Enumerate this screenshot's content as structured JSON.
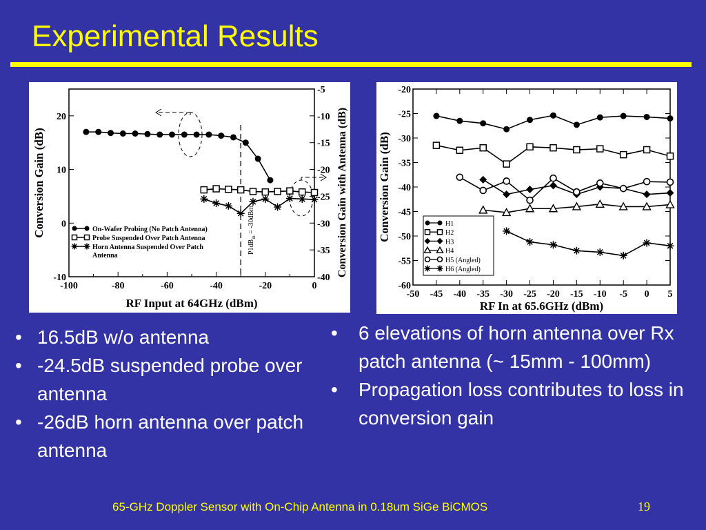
{
  "slide": {
    "title": "Experimental Results",
    "footer": "65-GHz Doppler Sensor with On-Chip Antenna in 0.18um SiGe BiCMOS",
    "page_number": "19",
    "bullets_left": [
      "16.5dB w/o antenna",
      "-24.5dB suspended probe over antenna",
      "-26dB horn antenna over patch antenna"
    ],
    "bullets_right": [
      "6 elevations of horn antenna over Rx patch antenna (~ 15mm -  100mm)",
      "Propagation loss contributes to loss in conversion gain"
    ],
    "bullet_char": "•"
  },
  "colors": {
    "background": "#3333a6",
    "accent": "#ffff00",
    "text": "#ffffff"
  },
  "chart_data": [
    {
      "type": "line",
      "xlabel": "RF Input at 64GHz (dBm)",
      "ylabel": "Conversion Gain (dB)",
      "y2label": "Conversion Gain with Antenna (dB)",
      "xlim": [
        -100,
        0
      ],
      "ylim": [
        -10,
        25
      ],
      "y2lim": [
        -40,
        -5
      ],
      "xticks": [
        "-100",
        "-80",
        "-60",
        "-40",
        "-20",
        "0"
      ],
      "yticks": [
        "-10",
        "0",
        "10",
        "20"
      ],
      "y2ticks": [
        "-5",
        "-10",
        "-15",
        "-20",
        "-25",
        "-30",
        "-35",
        "-40"
      ],
      "annotation": "P1dB",
      "annotation_sub": "in",
      "annotation_rest": " = -30dBm",
      "series": [
        {
          "name": "On-Wafer Probing (No Patch Antenna)",
          "marker": "circle-filled",
          "axis": "left",
          "x": [
            -93,
            -88,
            -83,
            -78,
            -73,
            -68,
            -63,
            -58,
            -53,
            -48,
            -43,
            -38,
            -33,
            -28,
            -23,
            -18
          ],
          "values": [
            17,
            17,
            16.8,
            16.7,
            16.7,
            16.6,
            16.5,
            16.5,
            16.5,
            16.5,
            16.5,
            16.3,
            16,
            15,
            12,
            8
          ]
        },
        {
          "name": "Probe Suspended Over Patch Antenna",
          "marker": "square-open",
          "axis": "right",
          "x": [
            -45,
            -40,
            -35,
            -30,
            -25,
            -20,
            -15,
            -10,
            -5,
            0
          ],
          "values": [
            -23.8,
            -23.6,
            -23.7,
            -23.8,
            -24.1,
            -24.2,
            -24.1,
            -24,
            -24.2,
            -24.3
          ]
        },
        {
          "name": "Horn Antenna Suspended Over Patch",
          "name_line2": "Antenna",
          "marker": "star",
          "axis": "right",
          "x": [
            -45,
            -40,
            -35,
            -30,
            -25,
            -20,
            -15,
            -10,
            -5,
            0
          ],
          "values": [
            -25.5,
            -26.3,
            -26.8,
            -28.2,
            -26,
            -25.5,
            -27,
            -25.4,
            -25.5,
            -25.6
          ]
        }
      ]
    },
    {
      "type": "line",
      "xlabel": "RF In at 65.6GHz (dBm)",
      "ylabel": "Conversion Gain (dB)",
      "xlim": [
        -50,
        5
      ],
      "ylim": [
        -60,
        -20
      ],
      "xticks": [
        "-50",
        "-45",
        "-40",
        "-35",
        "-30",
        "-25",
        "-20",
        "-15",
        "-10",
        "-5",
        "0",
        "5"
      ],
      "yticks": [
        "-20",
        "-25",
        "-30",
        "-35",
        "-40",
        "-45",
        "-50",
        "-55",
        "-60"
      ],
      "series": [
        {
          "name": "H1",
          "marker": "circle-filled",
          "x": [
            -45,
            -40,
            -35,
            -30,
            -25,
            -20,
            -15,
            -10,
            -5,
            0,
            5
          ],
          "values": [
            -25.5,
            -26.5,
            -27,
            -28.2,
            -26.3,
            -25.4,
            -27.3,
            -25.8,
            -25.5,
            -25.7,
            -26
          ]
        },
        {
          "name": "H2",
          "marker": "square-open",
          "x": [
            -45,
            -40,
            -35,
            -30,
            -25,
            -20,
            -15,
            -10,
            -5,
            0,
            5
          ],
          "values": [
            -31.5,
            -32.5,
            -32,
            -35.3,
            -31.8,
            -32,
            -32.4,
            -32.2,
            -33.4,
            -32.4,
            -33.7
          ]
        },
        {
          "name": "H3",
          "marker": "diamond-filled",
          "x": [
            -35,
            -30,
            -25,
            -20,
            -15,
            -10,
            -5,
            0,
            5
          ],
          "values": [
            -38.5,
            -41.5,
            -40.5,
            -39.7,
            -41.5,
            -40,
            -40.3,
            -41.5,
            -41.2
          ]
        },
        {
          "name": "H4",
          "marker": "triangle-open",
          "x": [
            -35,
            -30,
            -25,
            -20,
            -15,
            -10,
            -5,
            0,
            5
          ],
          "values": [
            -44.7,
            -45.2,
            -44.4,
            -44.4,
            -44,
            -43.5,
            -44,
            -44,
            -43.6
          ]
        },
        {
          "name": "H5 (Angled)",
          "marker": "circle-open",
          "x": [
            -40,
            -35,
            -30,
            -25,
            -20,
            -15,
            -10,
            -5,
            0,
            5
          ],
          "values": [
            -38,
            -40.7,
            -38.8,
            -42.7,
            -38.2,
            -41,
            -39.2,
            -40.3,
            -38.9,
            -39
          ]
        },
        {
          "name": "H6 (Angled)",
          "marker": "star",
          "x": [
            -30,
            -25,
            -20,
            -15,
            -10,
            -5,
            0,
            5
          ],
          "values": [
            -49,
            -51.2,
            -51.8,
            -53,
            -53.3,
            -54,
            -51.4,
            -52
          ]
        }
      ]
    }
  ]
}
